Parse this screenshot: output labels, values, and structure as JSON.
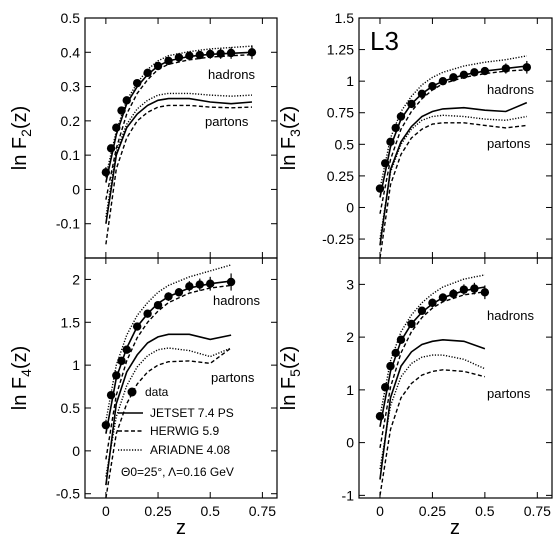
{
  "figure_label": "L3",
  "x_axis_label": "z",
  "legend": {
    "data": "data",
    "jetset": "JETSET 7.4 PS",
    "herwig": "HERWIG 5.9",
    "ariadne": "ARIADNE 4.08",
    "params": "Θ0=25°, Λ=0.16 GeV"
  },
  "chart_data": [
    {
      "type": "line",
      "ylabel": "ln F2(z)",
      "ylabel_main": "ln F",
      "ylabel_sub": "2",
      "ylabel_tail": "(z)",
      "xlim": [
        -0.1,
        0.82
      ],
      "ylim": [
        -0.2,
        0.5
      ],
      "xticks": [
        "0",
        "0.25",
        "0.5",
        "0.75"
      ],
      "yticks": [
        -0.1,
        0,
        0.1,
        0.2,
        0.3,
        0.4,
        0.5
      ],
      "ytick_labels": [
        "-0.1",
        "0",
        "0.1",
        "0.2",
        "0.3",
        "0.4",
        "0.5"
      ],
      "annotations": [
        "hadrons",
        "partons"
      ],
      "data_points": {
        "x": [
          0,
          0.025,
          0.05,
          0.075,
          0.1,
          0.15,
          0.2,
          0.25,
          0.3,
          0.35,
          0.4,
          0.45,
          0.5,
          0.55,
          0.6,
          0.7
        ],
        "y": [
          0.05,
          0.12,
          0.18,
          0.23,
          0.26,
          0.31,
          0.34,
          0.36,
          0.375,
          0.385,
          0.39,
          0.392,
          0.395,
          0.396,
          0.398,
          0.4
        ],
        "err": [
          0.015,
          0.01,
          0.01,
          0.01,
          0.01,
          0.01,
          0.01,
          0.01,
          0.01,
          0.01,
          0.01,
          0.012,
          0.014,
          0.015,
          0.017,
          0.02
        ]
      },
      "series": [
        {
          "name": "JETSET 7.4 PS",
          "group": "hadrons",
          "x": [
            0,
            0.05,
            0.1,
            0.15,
            0.2,
            0.25,
            0.3,
            0.4,
            0.5,
            0.6,
            0.7
          ],
          "y": [
            0.02,
            0.16,
            0.25,
            0.3,
            0.335,
            0.36,
            0.375,
            0.388,
            0.394,
            0.397,
            0.4
          ]
        },
        {
          "name": "HERWIG 5.9",
          "group": "hadrons",
          "x": [
            0,
            0.05,
            0.1,
            0.15,
            0.2,
            0.25,
            0.3,
            0.4,
            0.5,
            0.6,
            0.7
          ],
          "y": [
            -0.03,
            0.12,
            0.22,
            0.28,
            0.32,
            0.35,
            0.365,
            0.378,
            0.386,
            0.39,
            0.393
          ]
        },
        {
          "name": "ARIADNE 4.08",
          "group": "hadrons",
          "x": [
            0,
            0.05,
            0.1,
            0.15,
            0.2,
            0.25,
            0.3,
            0.4,
            0.5,
            0.6,
            0.7
          ],
          "y": [
            0.04,
            0.17,
            0.26,
            0.31,
            0.35,
            0.375,
            0.39,
            0.402,
            0.41,
            0.414,
            0.418
          ]
        },
        {
          "name": "JETSET 7.4 PS",
          "group": "partons",
          "x": [
            0,
            0.05,
            0.1,
            0.15,
            0.2,
            0.25,
            0.3,
            0.4,
            0.5,
            0.6,
            0.7
          ],
          "y": [
            -0.1,
            0.1,
            0.18,
            0.22,
            0.245,
            0.26,
            0.265,
            0.265,
            0.255,
            0.25,
            0.255
          ]
        },
        {
          "name": "HERWIG 5.9",
          "group": "partons",
          "x": [
            0,
            0.05,
            0.1,
            0.15,
            0.2,
            0.25,
            0.3,
            0.4,
            0.5,
            0.6,
            0.7
          ],
          "y": [
            -0.16,
            0.06,
            0.15,
            0.2,
            0.225,
            0.24,
            0.245,
            0.245,
            0.24,
            0.238,
            0.24
          ]
        },
        {
          "name": "ARIADNE 4.08",
          "group": "partons",
          "x": [
            0,
            0.05,
            0.1,
            0.15,
            0.2,
            0.25,
            0.3,
            0.4,
            0.5,
            0.6,
            0.7
          ],
          "y": [
            -0.08,
            0.11,
            0.19,
            0.235,
            0.26,
            0.275,
            0.28,
            0.28,
            0.275,
            0.272,
            0.275
          ]
        }
      ]
    },
    {
      "type": "line",
      "ylabel": "ln F3(z)",
      "ylabel_main": "ln F",
      "ylabel_sub": "3",
      "ylabel_tail": "(z)",
      "xlim": [
        -0.1,
        0.82
      ],
      "ylim": [
        -0.4,
        1.5
      ],
      "xticks": [
        "0",
        "0.25",
        "0.5",
        "0.75"
      ],
      "yticks": [
        -0.25,
        0,
        0.25,
        0.5,
        0.75,
        1,
        1.25,
        1.5
      ],
      "ytick_labels": [
        "-0.25",
        "0",
        "0.25",
        "0.5",
        "0.75",
        "1",
        "1.25",
        "1.5"
      ],
      "annotations": [
        "hadrons",
        "partons"
      ],
      "data_points": {
        "x": [
          0,
          0.025,
          0.05,
          0.075,
          0.1,
          0.15,
          0.2,
          0.25,
          0.3,
          0.35,
          0.4,
          0.45,
          0.5,
          0.6,
          0.7
        ],
        "y": [
          0.15,
          0.35,
          0.52,
          0.63,
          0.72,
          0.82,
          0.9,
          0.96,
          1.0,
          1.03,
          1.05,
          1.07,
          1.08,
          1.1,
          1.11
        ],
        "err": [
          0.02,
          0.02,
          0.02,
          0.02,
          0.02,
          0.02,
          0.02,
          0.02,
          0.02,
          0.02,
          0.03,
          0.03,
          0.03,
          0.04,
          0.05
        ]
      },
      "series": [
        {
          "name": "JETSET 7.4 PS",
          "group": "hadrons",
          "x": [
            0,
            0.05,
            0.1,
            0.15,
            0.2,
            0.25,
            0.3,
            0.4,
            0.5,
            0.6,
            0.7
          ],
          "y": [
            0.08,
            0.48,
            0.7,
            0.82,
            0.9,
            0.96,
            1.0,
            1.05,
            1.08,
            1.1,
            1.12
          ]
        },
        {
          "name": "HERWIG 5.9",
          "group": "hadrons",
          "x": [
            0,
            0.05,
            0.1,
            0.15,
            0.2,
            0.25,
            0.3,
            0.4,
            0.5,
            0.6,
            0.7
          ],
          "y": [
            -0.05,
            0.38,
            0.62,
            0.76,
            0.86,
            0.93,
            0.98,
            1.03,
            1.06,
            1.08,
            1.09
          ]
        },
        {
          "name": "ARIADNE 4.08",
          "group": "hadrons",
          "x": [
            0,
            0.05,
            0.1,
            0.15,
            0.2,
            0.25,
            0.3,
            0.4,
            0.5,
            0.6,
            0.7
          ],
          "y": [
            0.15,
            0.55,
            0.76,
            0.88,
            0.97,
            1.03,
            1.07,
            1.12,
            1.15,
            1.17,
            1.2
          ]
        },
        {
          "name": "JETSET 7.4 PS",
          "group": "partons",
          "x": [
            0,
            0.05,
            0.1,
            0.15,
            0.2,
            0.25,
            0.3,
            0.4,
            0.5,
            0.6,
            0.7
          ],
          "y": [
            -0.3,
            0.3,
            0.52,
            0.64,
            0.72,
            0.76,
            0.78,
            0.79,
            0.77,
            0.76,
            0.83
          ]
        },
        {
          "name": "HERWIG 5.9",
          "group": "partons",
          "x": [
            0,
            0.05,
            0.1,
            0.15,
            0.2,
            0.25,
            0.3,
            0.4,
            0.5,
            0.6,
            0.7
          ],
          "y": [
            -0.4,
            0.18,
            0.42,
            0.55,
            0.62,
            0.66,
            0.67,
            0.67,
            0.65,
            0.63,
            0.65
          ]
        },
        {
          "name": "ARIADNE 4.08",
          "group": "partons",
          "x": [
            0,
            0.05,
            0.1,
            0.15,
            0.2,
            0.25,
            0.3,
            0.4,
            0.5,
            0.6,
            0.7
          ],
          "y": [
            -0.25,
            0.28,
            0.5,
            0.62,
            0.69,
            0.72,
            0.73,
            0.72,
            0.7,
            0.69,
            0.72
          ]
        }
      ]
    },
    {
      "type": "line",
      "ylabel": "ln F4(z)",
      "ylabel_main": "ln F",
      "ylabel_sub": "4",
      "ylabel_tail": "(z)",
      "xlim": [
        -0.1,
        0.82
      ],
      "ylim": [
        -0.55,
        2.25
      ],
      "xticks": [
        "0",
        "0.25",
        "0.5",
        "0.75"
      ],
      "yticks": [
        -0.5,
        0,
        0.5,
        1,
        1.5,
        2
      ],
      "ytick_labels": [
        "-0.5",
        "0",
        "0.5",
        "1",
        "1.5",
        "2"
      ],
      "annotations": [
        "hadrons",
        "partons"
      ],
      "data_points": {
        "x": [
          0,
          0.025,
          0.05,
          0.075,
          0.1,
          0.15,
          0.2,
          0.25,
          0.3,
          0.35,
          0.4,
          0.45,
          0.5,
          0.6
        ],
        "y": [
          0.3,
          0.65,
          0.88,
          1.05,
          1.18,
          1.45,
          1.6,
          1.7,
          1.8,
          1.85,
          1.92,
          1.94,
          1.95,
          1.97
        ],
        "err": [
          0.04,
          0.04,
          0.04,
          0.04,
          0.04,
          0.04,
          0.04,
          0.04,
          0.05,
          0.05,
          0.06,
          0.07,
          0.08,
          0.1
        ]
      },
      "series": [
        {
          "name": "JETSET 7.4 PS",
          "group": "hadrons",
          "x": [
            0,
            0.05,
            0.1,
            0.15,
            0.2,
            0.25,
            0.3,
            0.4,
            0.5,
            0.6
          ],
          "y": [
            0.2,
            0.85,
            1.2,
            1.45,
            1.6,
            1.72,
            1.8,
            1.9,
            1.95,
            1.98
          ]
        },
        {
          "name": "HERWIG 5.9",
          "group": "hadrons",
          "x": [
            0,
            0.05,
            0.1,
            0.15,
            0.2,
            0.25,
            0.3,
            0.4,
            0.5,
            0.6
          ],
          "y": [
            -0.1,
            0.65,
            1.05,
            1.32,
            1.5,
            1.63,
            1.73,
            1.84,
            1.9,
            1.93
          ]
        },
        {
          "name": "ARIADNE 4.08",
          "group": "hadrons",
          "x": [
            0,
            0.05,
            0.1,
            0.15,
            0.2,
            0.25,
            0.3,
            0.4,
            0.5,
            0.6
          ],
          "y": [
            0.35,
            1.0,
            1.35,
            1.58,
            1.73,
            1.85,
            1.93,
            2.03,
            2.1,
            2.17
          ]
        },
        {
          "name": "JETSET 7.4 PS",
          "group": "partons",
          "x": [
            0,
            0.05,
            0.1,
            0.15,
            0.2,
            0.25,
            0.3,
            0.4,
            0.5,
            0.6
          ],
          "y": [
            -0.4,
            0.55,
            0.92,
            1.12,
            1.26,
            1.33,
            1.36,
            1.36,
            1.3,
            1.35
          ]
        },
        {
          "name": "HERWIG 5.9",
          "group": "partons",
          "x": [
            0,
            0.05,
            0.1,
            0.15,
            0.2,
            0.25,
            0.3,
            0.4,
            0.5,
            0.6
          ],
          "y": [
            -0.55,
            0.2,
            0.55,
            0.78,
            0.92,
            1.0,
            1.04,
            1.05,
            1.02,
            1.2
          ]
        },
        {
          "name": "ARIADNE 4.08",
          "group": "partons",
          "x": [
            0,
            0.05,
            0.1,
            0.15,
            0.2,
            0.25,
            0.3,
            0.4,
            0.5,
            0.6
          ],
          "y": [
            -0.3,
            0.4,
            0.76,
            0.98,
            1.11,
            1.18,
            1.2,
            1.17,
            1.1,
            1.2
          ]
        }
      ]
    },
    {
      "type": "line",
      "ylabel": "ln F5(z)",
      "ylabel_main": "ln F",
      "ylabel_sub": "5",
      "ylabel_tail": "(z)",
      "xlim": [
        -0.1,
        0.82
      ],
      "ylim": [
        -1.05,
        3.5
      ],
      "xticks": [
        "0",
        "0.25",
        "0.5",
        "0.75"
      ],
      "yticks": [
        -1,
        0,
        1,
        2,
        3
      ],
      "ytick_labels": [
        "-1",
        "0",
        "1",
        "2",
        "3"
      ],
      "annotations": [
        "hadrons",
        "partons"
      ],
      "data_points": {
        "x": [
          0,
          0.025,
          0.05,
          0.075,
          0.1,
          0.15,
          0.2,
          0.25,
          0.3,
          0.35,
          0.4,
          0.45,
          0.5
        ],
        "y": [
          0.5,
          1.05,
          1.45,
          1.7,
          1.95,
          2.25,
          2.5,
          2.65,
          2.75,
          2.82,
          2.9,
          2.92,
          2.85
        ],
        "err": [
          0.07,
          0.07,
          0.07,
          0.07,
          0.07,
          0.07,
          0.07,
          0.08,
          0.08,
          0.09,
          0.1,
          0.11,
          0.13
        ]
      },
      "series": [
        {
          "name": "JETSET 7.4 PS",
          "group": "hadrons",
          "x": [
            0,
            0.05,
            0.1,
            0.15,
            0.2,
            0.25,
            0.3,
            0.4,
            0.5
          ],
          "y": [
            0.3,
            1.35,
            1.93,
            2.25,
            2.47,
            2.63,
            2.75,
            2.88,
            2.95
          ]
        },
        {
          "name": "HERWIG 5.9",
          "group": "hadrons",
          "x": [
            0,
            0.05,
            0.1,
            0.15,
            0.2,
            0.25,
            0.3,
            0.4,
            0.5
          ],
          "y": [
            -0.1,
            1.05,
            1.7,
            2.1,
            2.37,
            2.55,
            2.67,
            2.8,
            2.86
          ]
        },
        {
          "name": "ARIADNE 4.08",
          "group": "hadrons",
          "x": [
            0,
            0.05,
            0.1,
            0.15,
            0.2,
            0.25,
            0.3,
            0.4,
            0.5
          ],
          "y": [
            0.5,
            1.55,
            2.1,
            2.42,
            2.65,
            2.82,
            2.95,
            3.1,
            3.18
          ]
        },
        {
          "name": "JETSET 7.4 PS",
          "group": "partons",
          "x": [
            0,
            0.05,
            0.1,
            0.15,
            0.2,
            0.25,
            0.3,
            0.4,
            0.5
          ],
          "y": [
            -0.7,
            0.85,
            1.45,
            1.72,
            1.86,
            1.92,
            1.95,
            1.92,
            1.78
          ]
        },
        {
          "name": "HERWIG 5.9",
          "group": "partons",
          "x": [
            0,
            0.05,
            0.1,
            0.15,
            0.2,
            0.25,
            0.3,
            0.4,
            0.5
          ],
          "y": [
            -1.0,
            0.25,
            0.85,
            1.12,
            1.28,
            1.35,
            1.38,
            1.35,
            1.25
          ]
        },
        {
          "name": "ARIADNE 4.08",
          "group": "partons",
          "x": [
            0,
            0.05,
            0.1,
            0.15,
            0.2,
            0.25,
            0.3,
            0.4,
            0.5
          ],
          "y": [
            -0.5,
            0.7,
            1.25,
            1.5,
            1.62,
            1.66,
            1.66,
            1.58,
            1.4
          ]
        }
      ]
    }
  ]
}
